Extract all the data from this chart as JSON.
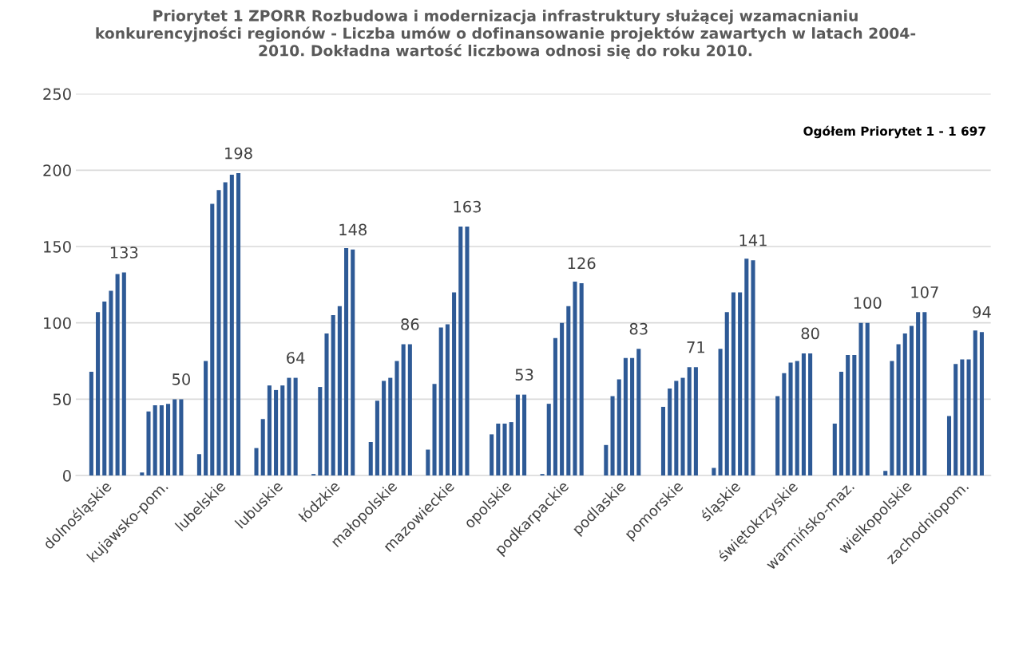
{
  "chart_data": {
    "type": "bar",
    "title": "Priorytet 1 ZPORR Rozbudowa i modernizacja infrastruktury służącej wzamacnianiu\nkonkurencyjności regionów - Liczba umów o dofinansowanie projektów zawartych w latach 2004-\n2010. Dokładna wartość liczbowa odnosi się do roku 2010.",
    "categories": [
      "dolnośląskie",
      "kujawsko-pom.",
      "lubelskie",
      "lubuskie",
      "łódzkie",
      "małopolskie",
      "mazowieckie",
      "opolskie",
      "podkarpackie",
      "podlaskie",
      "pomorskie",
      "śląskie",
      "świętokrzyskie",
      "warmińsko-maz.",
      "wielkopolskie",
      "zachodniopom."
    ],
    "series": [
      {
        "color": "#2e5a96",
        "values": [
          0,
          2,
          14,
          18,
          1,
          22,
          17,
          0,
          1,
          0,
          0,
          5,
          0,
          0,
          3,
          0
        ]
      },
      {
        "color": "#2e5a96",
        "values": [
          68,
          42,
          75,
          37,
          58,
          49,
          60,
          27,
          47,
          20,
          45,
          83,
          52,
          34,
          75,
          39
        ]
      },
      {
        "color": "#2e5a96",
        "values": [
          107,
          46,
          178,
          59,
          93,
          62,
          97,
          34,
          90,
          52,
          57,
          107,
          67,
          68,
          86,
          73
        ]
      },
      {
        "color": "#2e5a96",
        "values": [
          114,
          46,
          187,
          56,
          105,
          64,
          99,
          34,
          100,
          63,
          62,
          120,
          74,
          79,
          93,
          76
        ]
      },
      {
        "color": "#2e5a96",
        "values": [
          121,
          47,
          192,
          59,
          111,
          75,
          120,
          35,
          111,
          77,
          64,
          120,
          75,
          79,
          98,
          76
        ]
      },
      {
        "color": "#2e5a96",
        "values": [
          132,
          50,
          197,
          64,
          149,
          86,
          163,
          53,
          127,
          77,
          71,
          142,
          80,
          100,
          107,
          95
        ]
      },
      {
        "color": "#2e5a96",
        "values": [
          133,
          50,
          198,
          64,
          148,
          86,
          163,
          53,
          126,
          83,
          71,
          141,
          80,
          100,
          107,
          94
        ],
        "value_labels": [
          "133",
          "50",
          "198",
          "64",
          "148",
          "86",
          "163",
          "53",
          "126",
          "83",
          "71",
          "141",
          "80",
          "100",
          "107",
          "94"
        ]
      }
    ],
    "ylim": [
      0,
      250
    ],
    "yticks": [
      0,
      50,
      100,
      150,
      200,
      250
    ],
    "grid": "y",
    "annotations": [
      "Ogółem Priorytet 1 - 1 697"
    ]
  }
}
